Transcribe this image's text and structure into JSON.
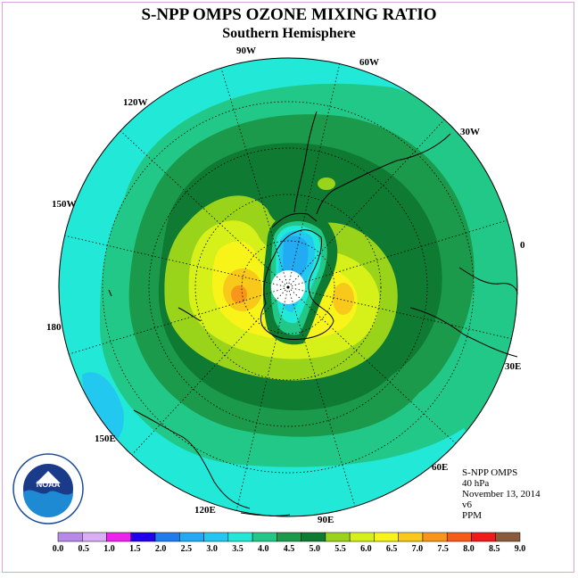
{
  "header": {
    "title": "S-NPP OMPS OZONE MIXING RATIO",
    "subtitle": "Southern Hemisphere"
  },
  "longitude_labels": [
    "90W",
    "60W",
    "30W",
    "0",
    "30E",
    "60E",
    "90E",
    "120E",
    "150E",
    "180",
    "150W",
    "120W"
  ],
  "info": {
    "instrument": "S-NPP OMPS",
    "level": "40 hPa",
    "date": "November 13, 2014",
    "version": "v6",
    "units": "PPM"
  },
  "logo": {
    "text": "NOAA",
    "ring_text": "NATIONAL OCEANIC AND ATMOSPHERIC ADMINISTRATION · U.S. DEPARTMENT OF COMMERCE"
  },
  "colorbar": {
    "labels": [
      "0.0",
      "0.5",
      "1.0",
      "1.5",
      "2.0",
      "2.5",
      "3.0",
      "3.5",
      "4.0",
      "4.5",
      "5.0",
      "5.5",
      "6.0",
      "6.5",
      "7.0",
      "7.5",
      "8.0",
      "8.5",
      "9.0"
    ],
    "colors": [
      "#b78ae8",
      "#d9aef5",
      "#ee22ee",
      "#2200ee",
      "#1e7cf0",
      "#22aaf2",
      "#22c8f0",
      "#22e8d8",
      "#22c888",
      "#1a9a4a",
      "#0e7a32",
      "#9ad41a",
      "#d6f01a",
      "#f8f41a",
      "#f8c81a",
      "#f8961a",
      "#f85a1a",
      "#f01a1a",
      "#8a5a3a"
    ]
  },
  "colors": {
    "frame_border": "#d9a6d9"
  }
}
